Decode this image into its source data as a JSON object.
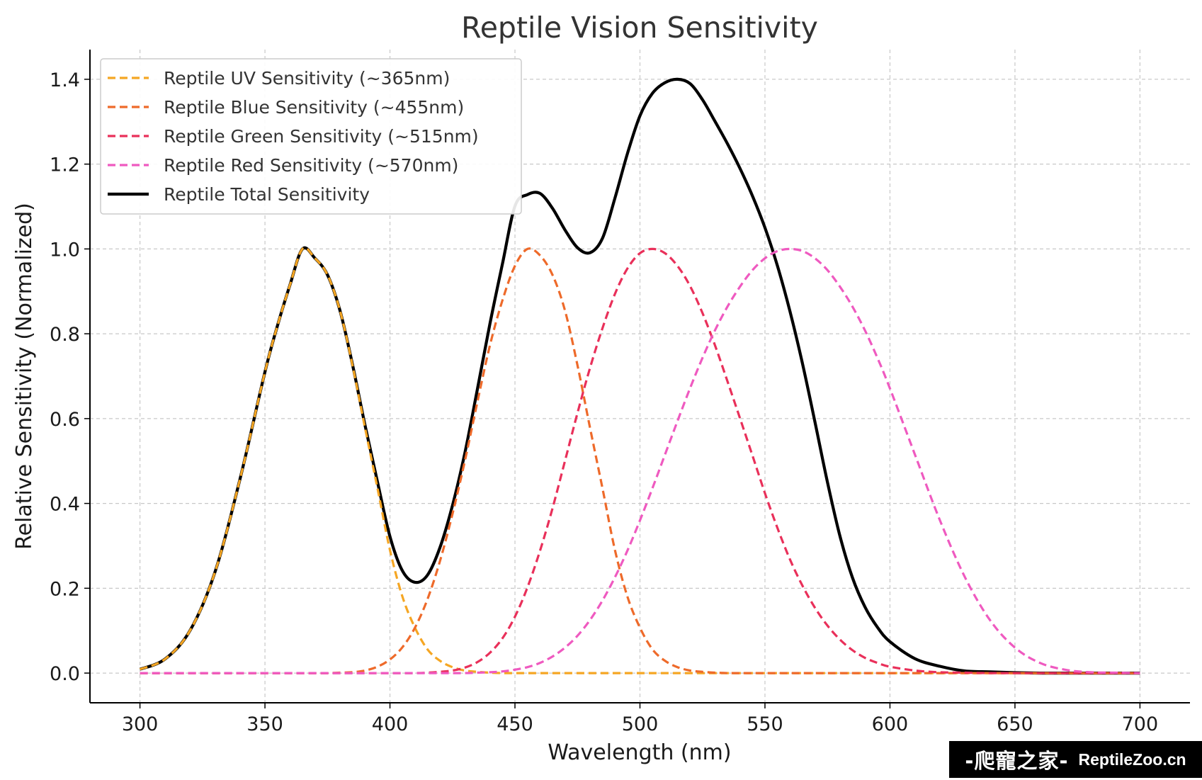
{
  "chart_data": {
    "type": "line",
    "title": "Reptile Vision Sensitivity",
    "xlabel": "Wavelength (nm)",
    "ylabel": "Relative Sensitivity (Normalized)",
    "xlim": [
      280,
      720
    ],
    "ylim": [
      -0.07,
      1.47
    ],
    "xticks": [
      300,
      350,
      400,
      450,
      500,
      550,
      600,
      650,
      700
    ],
    "xtick_labels": [
      "300",
      "350",
      "400",
      "450",
      "500",
      "550",
      "600",
      "650",
      "700"
    ],
    "yticks": [
      0.0,
      0.2,
      0.4,
      0.6,
      0.8,
      1.0,
      1.2,
      1.4
    ],
    "ytick_labels": [
      "0.0",
      "0.2",
      "0.4",
      "0.6",
      "0.8",
      "1.0",
      "1.2",
      "1.4"
    ],
    "grid": true,
    "legend_position": "top-left",
    "x": [
      300,
      310,
      320,
      330,
      340,
      350,
      355,
      360,
      365,
      370,
      375,
      380,
      385,
      390,
      395,
      400,
      405,
      410,
      415,
      420,
      425,
      430,
      435,
      440,
      445,
      450,
      455,
      460,
      465,
      470,
      475,
      480,
      485,
      490,
      495,
      500,
      505,
      510,
      515,
      520,
      525,
      530,
      535,
      540,
      545,
      550,
      555,
      560,
      565,
      570,
      575,
      580,
      585,
      590,
      595,
      600,
      610,
      620,
      630,
      640,
      650,
      660,
      670,
      680,
      690,
      700
    ],
    "series": [
      {
        "name": "Reptile UV Sensitivity (~365nm)",
        "color": "#f5a623",
        "style": "dashed",
        "values": [
          0.009,
          0.033,
          0.1,
          0.238,
          0.457,
          0.71,
          0.819,
          0.915,
          1.0,
          0.978,
          0.939,
          0.855,
          0.726,
          0.579,
          0.436,
          0.29,
          0.18,
          0.107,
          0.056,
          0.029,
          0.014,
          0.006,
          0.003,
          0.001,
          0.0,
          0.0,
          0.0,
          0.0,
          0.0,
          0.0,
          0.0,
          0.0,
          0.0,
          0.0,
          0.0,
          0.0,
          0.0,
          0.0,
          0.0,
          0.0,
          0.0,
          0.0,
          0.0,
          0.0,
          0.0,
          0.0,
          0.0,
          0.0,
          0.0,
          0.0,
          0.0,
          0.0,
          0.0,
          0.0,
          0.0,
          0.0,
          0.0,
          0.0,
          0.0,
          0.0,
          0.0,
          0.0,
          0.0,
          0.0,
          0.0,
          0.0
        ]
      },
      {
        "name": "Reptile Blue Sensitivity (~455nm)",
        "color": "#ee6a2a",
        "style": "dashed",
        "values": [
          0.0,
          0.0,
          0.0,
          0.0,
          0.0,
          0.0,
          0.0,
          0.0,
          0.0,
          0.0,
          0.0,
          0.001,
          0.002,
          0.006,
          0.015,
          0.032,
          0.061,
          0.107,
          0.174,
          0.264,
          0.375,
          0.501,
          0.64,
          0.773,
          0.879,
          0.96,
          1.0,
          0.985,
          0.939,
          0.855,
          0.726,
          0.579,
          0.436,
          0.29,
          0.18,
          0.107,
          0.056,
          0.029,
          0.014,
          0.006,
          0.003,
          0.001,
          0.0,
          0.0,
          0.0,
          0.0,
          0.0,
          0.0,
          0.0,
          0.0,
          0.0,
          0.0,
          0.0,
          0.0,
          0.0,
          0.0,
          0.0,
          0.0,
          0.0,
          0.0,
          0.0,
          0.0,
          0.0,
          0.0,
          0.0,
          0.0
        ]
      },
      {
        "name": "Reptile Green Sensitivity (~515nm)",
        "color": "#e9305a",
        "style": "dashed",
        "values": [
          0.0,
          0.0,
          0.0,
          0.0,
          0.0,
          0.0,
          0.0,
          0.0,
          0.0,
          0.0,
          0.0,
          0.0,
          0.0,
          0.0,
          0.0,
          0.0,
          0.0,
          0.0,
          0.001,
          0.003,
          0.006,
          0.013,
          0.026,
          0.048,
          0.082,
          0.133,
          0.202,
          0.288,
          0.388,
          0.5,
          0.613,
          0.719,
          0.813,
          0.894,
          0.954,
          0.99,
          1.0,
          0.99,
          0.96,
          0.913,
          0.849,
          0.773,
          0.688,
          0.601,
          0.513,
          0.424,
          0.342,
          0.268,
          0.206,
          0.154,
          0.112,
          0.079,
          0.054,
          0.036,
          0.024,
          0.015,
          0.006,
          0.002,
          0.001,
          0.0,
          0.0,
          0.0,
          0.0,
          0.0,
          0.0,
          0.0
        ]
      },
      {
        "name": "Reptile Red Sensitivity (~570nm)",
        "color": "#ef5ac0",
        "style": "dashed",
        "values": [
          0.0,
          0.0,
          0.0,
          0.0,
          0.0,
          0.0,
          0.0,
          0.0,
          0.0,
          0.0,
          0.0,
          0.0,
          0.0,
          0.0,
          0.0,
          0.0,
          0.0,
          0.0,
          0.0,
          0.0,
          0.0,
          0.0,
          0.001,
          0.002,
          0.004,
          0.008,
          0.014,
          0.024,
          0.039,
          0.06,
          0.088,
          0.125,
          0.171,
          0.226,
          0.289,
          0.36,
          0.436,
          0.515,
          0.594,
          0.671,
          0.743,
          0.808,
          0.864,
          0.911,
          0.95,
          0.978,
          0.995,
          1.0,
          0.995,
          0.978,
          0.95,
          0.911,
          0.864,
          0.808,
          0.743,
          0.671,
          0.515,
          0.36,
          0.226,
          0.125,
          0.06,
          0.024,
          0.008,
          0.002,
          0.001,
          0.0
        ]
      },
      {
        "name": "Reptile Total Sensitivity",
        "color": "#000000",
        "style": "solid",
        "values": [
          0.009,
          0.033,
          0.1,
          0.238,
          0.457,
          0.71,
          0.819,
          0.915,
          1.0,
          0.978,
          0.939,
          0.855,
          0.728,
          0.585,
          0.451,
          0.322,
          0.241,
          0.214,
          0.231,
          0.296,
          0.395,
          0.52,
          0.67,
          0.824,
          0.965,
          1.101,
          1.128,
          1.131,
          1.096,
          1.045,
          1.003,
          0.991,
          1.025,
          1.12,
          1.225,
          1.314,
          1.367,
          1.392,
          1.4,
          1.39,
          1.352,
          1.301,
          1.248,
          1.19,
          1.125,
          1.05,
          0.96,
          0.853,
          0.73,
          0.592,
          0.45,
          0.323,
          0.225,
          0.156,
          0.108,
          0.074,
          0.034,
          0.016,
          0.005,
          0.003,
          0.001,
          0.0,
          0.0,
          0.0,
          0.0,
          0.0
        ]
      }
    ]
  },
  "watermark": {
    "cn_text": "-爬寵之家-",
    "en_text": "ReptileZoo.cn"
  }
}
